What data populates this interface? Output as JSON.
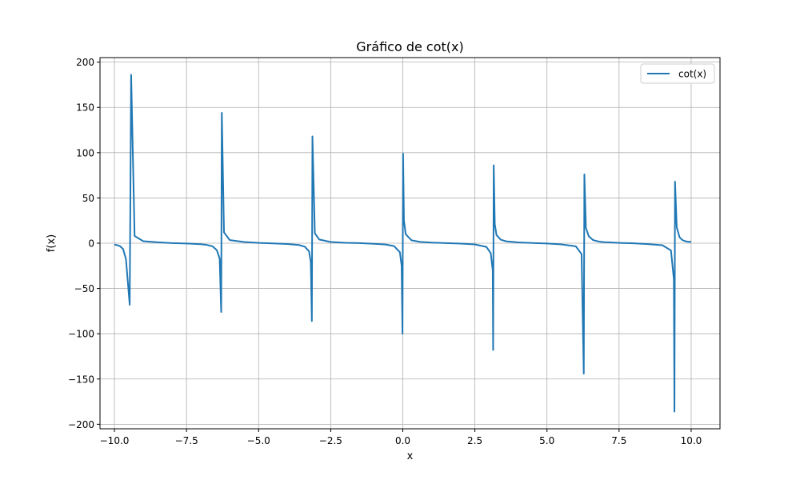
{
  "chart_data": {
    "type": "line",
    "title": "Gráfico de cot(x)",
    "xlabel": "x",
    "ylabel": "f(x)",
    "xlim": [
      -10.5,
      11.0
    ],
    "ylim": [
      -205,
      205
    ],
    "grid": true,
    "legend_position": "top-right",
    "function": "cot(x)",
    "sampled_domain": [
      -10.0,
      10.0
    ],
    "x_ticks": [
      -10.0,
      -7.5,
      -5.0,
      -2.5,
      0.0,
      2.5,
      5.0,
      7.5,
      10.0
    ],
    "x_tick_labels": [
      "−10.0",
      "−7.5",
      "−5.0",
      "−2.5",
      "0.0",
      "2.5",
      "5.0",
      "7.5",
      "10.0"
    ],
    "y_ticks": [
      -200,
      -150,
      -100,
      -50,
      0,
      50,
      100,
      150,
      200
    ],
    "y_tick_labels": [
      "−200",
      "−150",
      "−100",
      "−50",
      "0",
      "50",
      "100",
      "150",
      "200"
    ],
    "series": [
      {
        "name": "cot(x)",
        "color": "#1f77b4",
        "points": [
          [
            -10.0,
            -1.54
          ],
          [
            -9.9,
            -2.2
          ],
          [
            -9.8,
            -3.4
          ],
          [
            -9.7,
            -6.4
          ],
          [
            -9.6,
            -17.5
          ],
          [
            -9.47,
            -68.0
          ],
          [
            -9.42,
            186.0
          ],
          [
            -9.3,
            8.0
          ],
          [
            -9.0,
            2.2
          ],
          [
            -8.5,
            1.03
          ],
          [
            -8.0,
            0.15
          ],
          [
            -7.5,
            -0.36
          ],
          [
            -7.0,
            -1.15
          ],
          [
            -6.8,
            -1.8
          ],
          [
            -6.6,
            -3.4
          ],
          [
            -6.45,
            -7.6
          ],
          [
            -6.35,
            -17.0
          ],
          [
            -6.297,
            -76.0
          ],
          [
            -6.276,
            144.0
          ],
          [
            -6.2,
            12.0
          ],
          [
            -6.0,
            3.4
          ],
          [
            -5.5,
            1.35
          ],
          [
            -5.0,
            0.3
          ],
          [
            -4.5,
            -0.22
          ],
          [
            -4.0,
            -0.86
          ],
          [
            -3.6,
            -2.0
          ],
          [
            -3.4,
            -3.8
          ],
          [
            -3.25,
            -9.0
          ],
          [
            -3.19,
            -21.0
          ],
          [
            -3.153,
            -86.0
          ],
          [
            -3.133,
            118.0
          ],
          [
            -3.05,
            11.0
          ],
          [
            -2.9,
            4.1
          ],
          [
            -2.5,
            1.34
          ],
          [
            -2.0,
            0.46
          ],
          [
            -1.5,
            0.07
          ],
          [
            -1.0,
            -0.64
          ],
          [
            -0.6,
            -1.46
          ],
          [
            -0.3,
            -3.23
          ],
          [
            -0.1,
            -10.0
          ],
          [
            -0.04,
            -25.0
          ],
          [
            -0.01,
            -100.0
          ],
          [
            0.01,
            99.0
          ],
          [
            0.04,
            25.0
          ],
          [
            0.1,
            10.0
          ],
          [
            0.3,
            3.23
          ],
          [
            0.6,
            1.46
          ],
          [
            1.0,
            0.64
          ],
          [
            1.5,
            0.07
          ],
          [
            2.0,
            -0.46
          ],
          [
            2.5,
            -1.34
          ],
          [
            2.9,
            -4.1
          ],
          [
            3.05,
            -11.0
          ],
          [
            3.12,
            -30.0
          ],
          [
            3.133,
            -118.0
          ],
          [
            3.153,
            86.0
          ],
          [
            3.19,
            21.0
          ],
          [
            3.25,
            9.0
          ],
          [
            3.4,
            3.8
          ],
          [
            3.6,
            2.0
          ],
          [
            4.0,
            0.86
          ],
          [
            4.5,
            0.22
          ],
          [
            5.0,
            -0.3
          ],
          [
            5.5,
            -1.35
          ],
          [
            6.0,
            -3.4
          ],
          [
            6.2,
            -12.0
          ],
          [
            6.276,
            -144.0
          ],
          [
            6.297,
            76.0
          ],
          [
            6.35,
            17.0
          ],
          [
            6.45,
            7.6
          ],
          [
            6.6,
            3.4
          ],
          [
            6.8,
            1.8
          ],
          [
            7.0,
            1.15
          ],
          [
            7.5,
            0.36
          ],
          [
            8.0,
            -0.15
          ],
          [
            8.5,
            -1.03
          ],
          [
            9.0,
            -2.2
          ],
          [
            9.3,
            -8.0
          ],
          [
            9.4,
            -40.0
          ],
          [
            9.42,
            -186.0
          ],
          [
            9.44,
            68.0
          ],
          [
            9.5,
            17.5
          ],
          [
            9.6,
            6.4
          ],
          [
            9.7,
            3.4
          ],
          [
            9.8,
            2.2
          ],
          [
            9.9,
            1.5
          ],
          [
            10.0,
            1.54
          ]
        ]
      }
    ]
  }
}
